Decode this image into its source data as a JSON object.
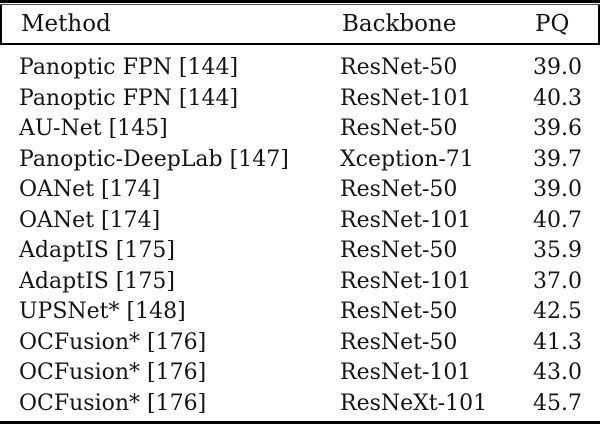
{
  "table": {
    "columns": {
      "method": "Method",
      "backbone": "Backbone",
      "pq": "PQ"
    },
    "rows": [
      {
        "method": "Panoptic FPN [144]",
        "backbone": "ResNet-50",
        "pq": "39.0"
      },
      {
        "method": "Panoptic FPN [144]",
        "backbone": "ResNet-101",
        "pq": "40.3"
      },
      {
        "method": "AU-Net [145]",
        "backbone": "ResNet-50",
        "pq": "39.6"
      },
      {
        "method": "Panoptic-DeepLab [147]",
        "backbone": "Xception-71",
        "pq": "39.7"
      },
      {
        "method": "OANet [174]",
        "backbone": "ResNet-50",
        "pq": "39.0"
      },
      {
        "method": "OANet [174]",
        "backbone": "ResNet-101",
        "pq": "40.7"
      },
      {
        "method": "AdaptIS [175]",
        "backbone": "ResNet-50",
        "pq": "35.9"
      },
      {
        "method": "AdaptIS [175]",
        "backbone": "ResNet-101",
        "pq": "37.0"
      },
      {
        "method": "UPSNet* [148]",
        "backbone": "ResNet-50",
        "pq": "42.5"
      },
      {
        "method": "OCFusion* [176]",
        "backbone": "ResNet-50",
        "pq": "41.3"
      },
      {
        "method": "OCFusion* [176]",
        "backbone": "ResNet-101",
        "pq": "43.0"
      },
      {
        "method": "OCFusion* [176]",
        "backbone": "ResNeXt-101",
        "pq": "45.7"
      }
    ],
    "colors": {
      "background": "#ffffff",
      "text": "#141414",
      "rule": "#000000"
    }
  }
}
